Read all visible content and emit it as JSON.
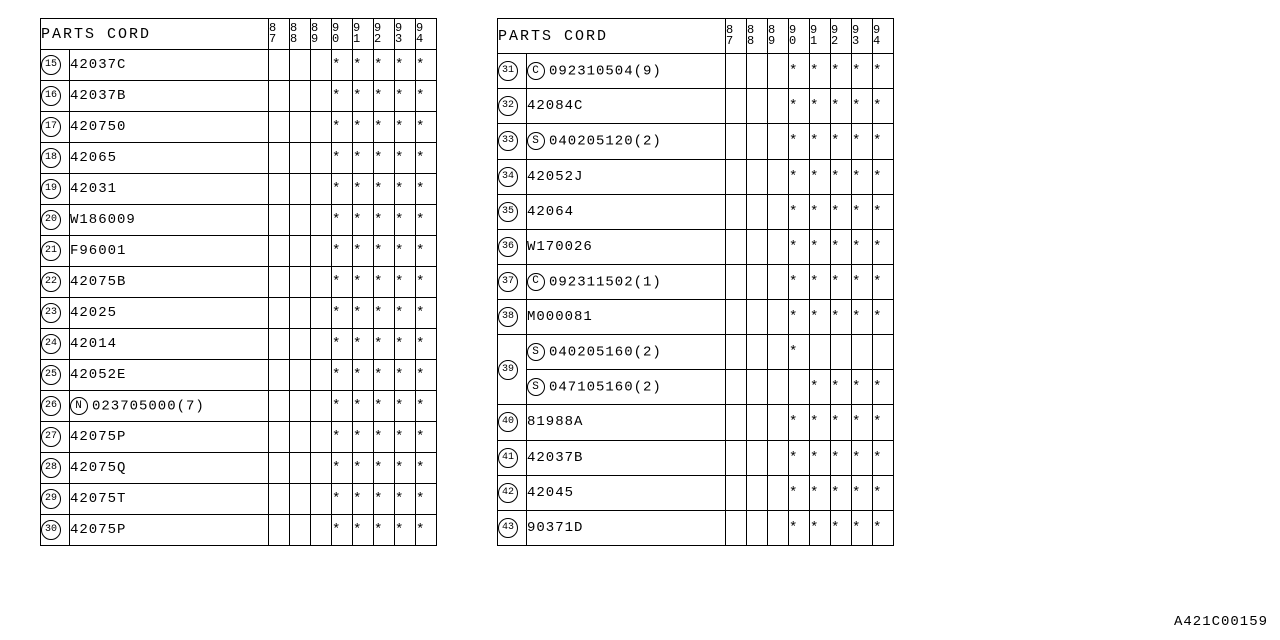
{
  "header": {
    "cord_label": "PARTS CORD"
  },
  "years": [
    "87",
    "88",
    "89",
    "90",
    "91",
    "92",
    "93",
    "94"
  ],
  "mark": "*",
  "doc_id": "A421C00159",
  "left_rows": [
    {
      "ref": "15",
      "prefix": "",
      "code": "42037C",
      "marks": [
        "",
        "",
        "",
        "*",
        "*",
        "*",
        "*",
        "*"
      ]
    },
    {
      "ref": "16",
      "prefix": "",
      "code": "42037B",
      "marks": [
        "",
        "",
        "",
        "*",
        "*",
        "*",
        "*",
        "*"
      ]
    },
    {
      "ref": "17",
      "prefix": "",
      "code": "420750",
      "marks": [
        "",
        "",
        "",
        "*",
        "*",
        "*",
        "*",
        "*"
      ]
    },
    {
      "ref": "18",
      "prefix": "",
      "code": "42065",
      "marks": [
        "",
        "",
        "",
        "*",
        "*",
        "*",
        "*",
        "*"
      ]
    },
    {
      "ref": "19",
      "prefix": "",
      "code": "42031",
      "marks": [
        "",
        "",
        "",
        "*",
        "*",
        "*",
        "*",
        "*"
      ]
    },
    {
      "ref": "20",
      "prefix": "",
      "code": "W186009",
      "marks": [
        "",
        "",
        "",
        "*",
        "*",
        "*",
        "*",
        "*"
      ]
    },
    {
      "ref": "21",
      "prefix": "",
      "code": "F96001",
      "marks": [
        "",
        "",
        "",
        "*",
        "*",
        "*",
        "*",
        "*"
      ]
    },
    {
      "ref": "22",
      "prefix": "",
      "code": "42075B",
      "marks": [
        "",
        "",
        "",
        "*",
        "*",
        "*",
        "*",
        "*"
      ]
    },
    {
      "ref": "23",
      "prefix": "",
      "code": "42025",
      "marks": [
        "",
        "",
        "",
        "*",
        "*",
        "*",
        "*",
        "*"
      ]
    },
    {
      "ref": "24",
      "prefix": "",
      "code": "42014",
      "marks": [
        "",
        "",
        "",
        "*",
        "*",
        "*",
        "*",
        "*"
      ]
    },
    {
      "ref": "25",
      "prefix": "",
      "code": "42052E",
      "marks": [
        "",
        "",
        "",
        "*",
        "*",
        "*",
        "*",
        "*"
      ]
    },
    {
      "ref": "26",
      "prefix": "N",
      "code": "023705000(7)",
      "marks": [
        "",
        "",
        "",
        "*",
        "*",
        "*",
        "*",
        "*"
      ]
    },
    {
      "ref": "27",
      "prefix": "",
      "code": "42075P",
      "marks": [
        "",
        "",
        "",
        "*",
        "*",
        "*",
        "*",
        "*"
      ]
    },
    {
      "ref": "28",
      "prefix": "",
      "code": "42075Q",
      "marks": [
        "",
        "",
        "",
        "*",
        "*",
        "*",
        "*",
        "*"
      ]
    },
    {
      "ref": "29",
      "prefix": "",
      "code": "42075T",
      "marks": [
        "",
        "",
        "",
        "*",
        "*",
        "*",
        "*",
        "*"
      ]
    },
    {
      "ref": "30",
      "prefix": "",
      "code": "42075P",
      "marks": [
        "",
        "",
        "",
        "*",
        "*",
        "*",
        "*",
        "*"
      ]
    }
  ],
  "right_rows": [
    {
      "ref": "31",
      "prefix": "C",
      "code": "092310504(9)",
      "marks": [
        "",
        "",
        "",
        "*",
        "*",
        "*",
        "*",
        "*"
      ],
      "ref_rowspan": 1
    },
    {
      "ref": "32",
      "prefix": "",
      "code": "42084C",
      "marks": [
        "",
        "",
        "",
        "*",
        "*",
        "*",
        "*",
        "*"
      ],
      "ref_rowspan": 1
    },
    {
      "ref": "33",
      "prefix": "S",
      "code": "040205120(2)",
      "marks": [
        "",
        "",
        "",
        "*",
        "*",
        "*",
        "*",
        "*"
      ],
      "ref_rowspan": 1
    },
    {
      "ref": "34",
      "prefix": "",
      "code": "42052J",
      "marks": [
        "",
        "",
        "",
        "*",
        "*",
        "*",
        "*",
        "*"
      ],
      "ref_rowspan": 1
    },
    {
      "ref": "35",
      "prefix": "",
      "code": "42064",
      "marks": [
        "",
        "",
        "",
        "*",
        "*",
        "*",
        "*",
        "*"
      ],
      "ref_rowspan": 1
    },
    {
      "ref": "36",
      "prefix": "",
      "code": "W170026",
      "marks": [
        "",
        "",
        "",
        "*",
        "*",
        "*",
        "*",
        "*"
      ],
      "ref_rowspan": 1
    },
    {
      "ref": "37",
      "prefix": "C",
      "code": "092311502(1)",
      "marks": [
        "",
        "",
        "",
        "*",
        "*",
        "*",
        "*",
        "*"
      ],
      "ref_rowspan": 1
    },
    {
      "ref": "38",
      "prefix": "",
      "code": "M000081",
      "marks": [
        "",
        "",
        "",
        "*",
        "*",
        "*",
        "*",
        "*"
      ],
      "ref_rowspan": 1
    },
    {
      "ref": "39",
      "prefix": "S",
      "code": "040205160(2)",
      "marks": [
        "",
        "",
        "",
        "*",
        "",
        "",
        "",
        ""
      ],
      "ref_rowspan": 2
    },
    {
      "ref": "",
      "prefix": "S",
      "code": "047105160(2)",
      "marks": [
        "",
        "",
        "",
        "",
        "*",
        "*",
        "*",
        "*"
      ],
      "ref_rowspan": 0
    },
    {
      "ref": "40",
      "prefix": "",
      "code": "81988A",
      "marks": [
        "",
        "",
        "",
        "*",
        "*",
        "*",
        "*",
        "*"
      ],
      "ref_rowspan": 1
    },
    {
      "ref": "41",
      "prefix": "",
      "code": "42037B",
      "marks": [
        "",
        "",
        "",
        "*",
        "*",
        "*",
        "*",
        "*"
      ],
      "ref_rowspan": 1
    },
    {
      "ref": "42",
      "prefix": "",
      "code": "42045",
      "marks": [
        "",
        "",
        "",
        "*",
        "*",
        "*",
        "*",
        "*"
      ],
      "ref_rowspan": 1
    },
    {
      "ref": "43",
      "prefix": "",
      "code": "90371D",
      "marks": [
        "",
        "",
        "",
        "*",
        "*",
        "*",
        "*",
        "*"
      ],
      "ref_rowspan": 1
    }
  ]
}
